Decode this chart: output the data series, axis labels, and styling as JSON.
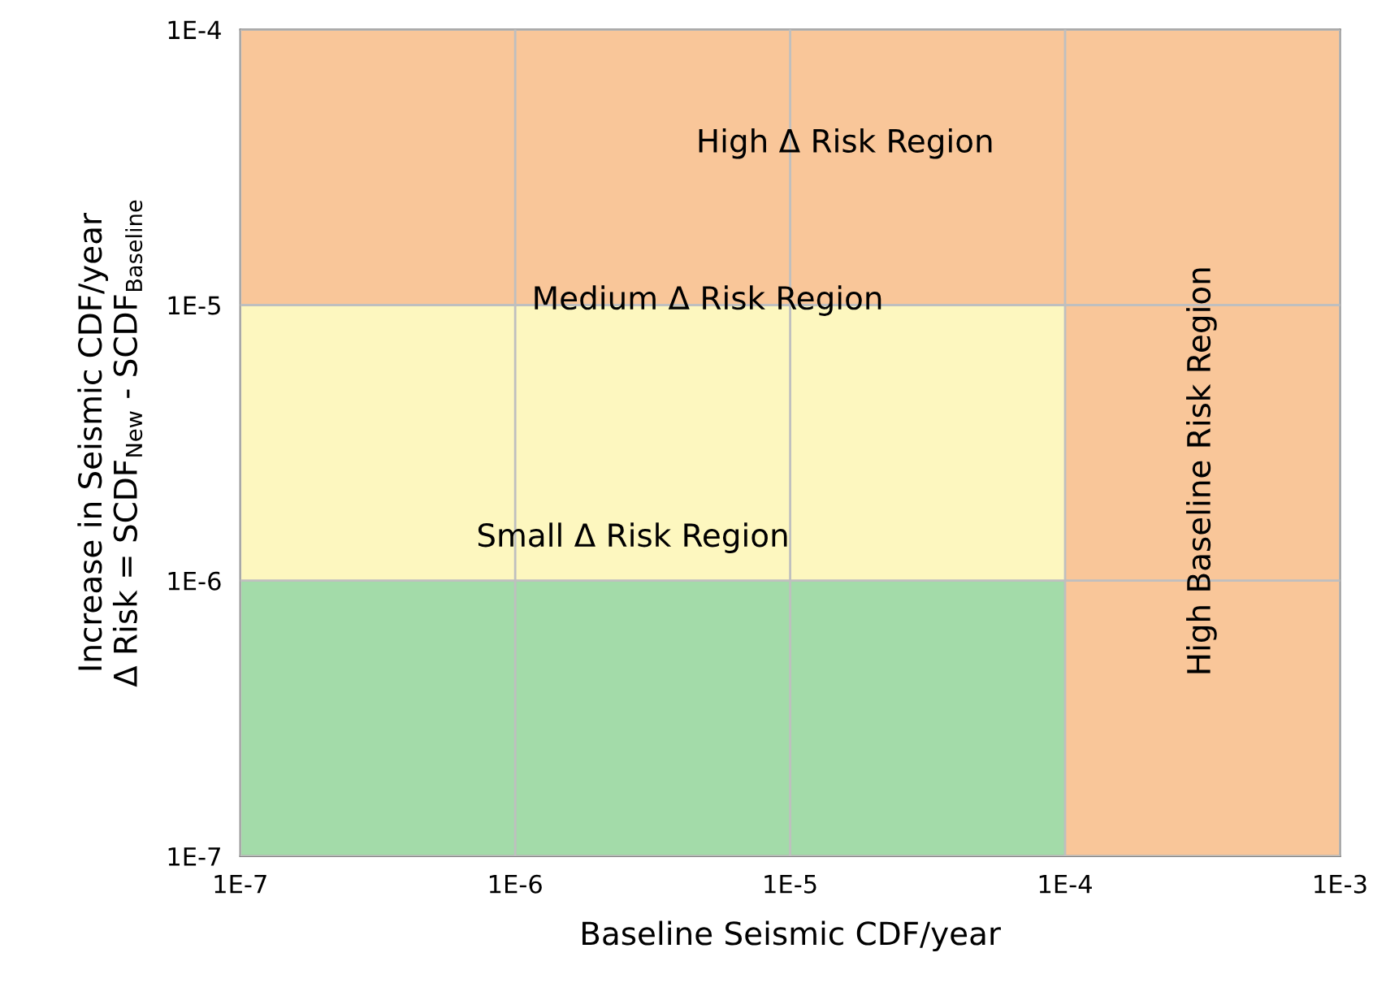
{
  "chart_data": {
    "type": "scatter",
    "xlabel": "Baseline Seismic CDF/year",
    "ylabel": "Increase in Seismic CDF/year\nΔ Risk = SCDF$_{New}$ - SCDF$_{Baseline}$",
    "log": "xy",
    "xlim": [
      1e-07,
      0.001
    ],
    "ylim": [
      1e-07,
      0.0001
    ],
    "xticks": [
      {
        "value": 1e-07,
        "label": "1E-7"
      },
      {
        "value": 1e-06,
        "label": "1E-6"
      },
      {
        "value": 1e-05,
        "label": "1E-5"
      },
      {
        "value": 0.0001,
        "label": "1E-4"
      },
      {
        "value": 0.001,
        "label": "1E-3"
      }
    ],
    "yticks": [
      {
        "value": 1e-07,
        "label": "1E-7"
      },
      {
        "value": 1e-06,
        "label": "1E-6"
      },
      {
        "value": 1e-05,
        "label": "1E-5"
      },
      {
        "value": 0.0001,
        "label": "1E-4"
      }
    ],
    "grid": true,
    "bands": [
      {
        "axis": "y",
        "from": 1e-07,
        "to": 1e-06,
        "color": "#a3dba9"
      },
      {
        "axis": "y",
        "from": 1e-06,
        "to": 1e-05,
        "color": "#fdf7bf"
      },
      {
        "axis": "y",
        "from": 1e-05,
        "to": 0.0001,
        "color": "#f9c699"
      },
      {
        "axis": "x",
        "from": 0.0001,
        "to": 0.001,
        "color": "#f9c699"
      }
    ],
    "annotations": [
      "High Δ Risk Region",
      "Medium Δ Risk Region",
      "Small Δ Risk Region",
      "High Baseline Risk Region"
    ]
  }
}
